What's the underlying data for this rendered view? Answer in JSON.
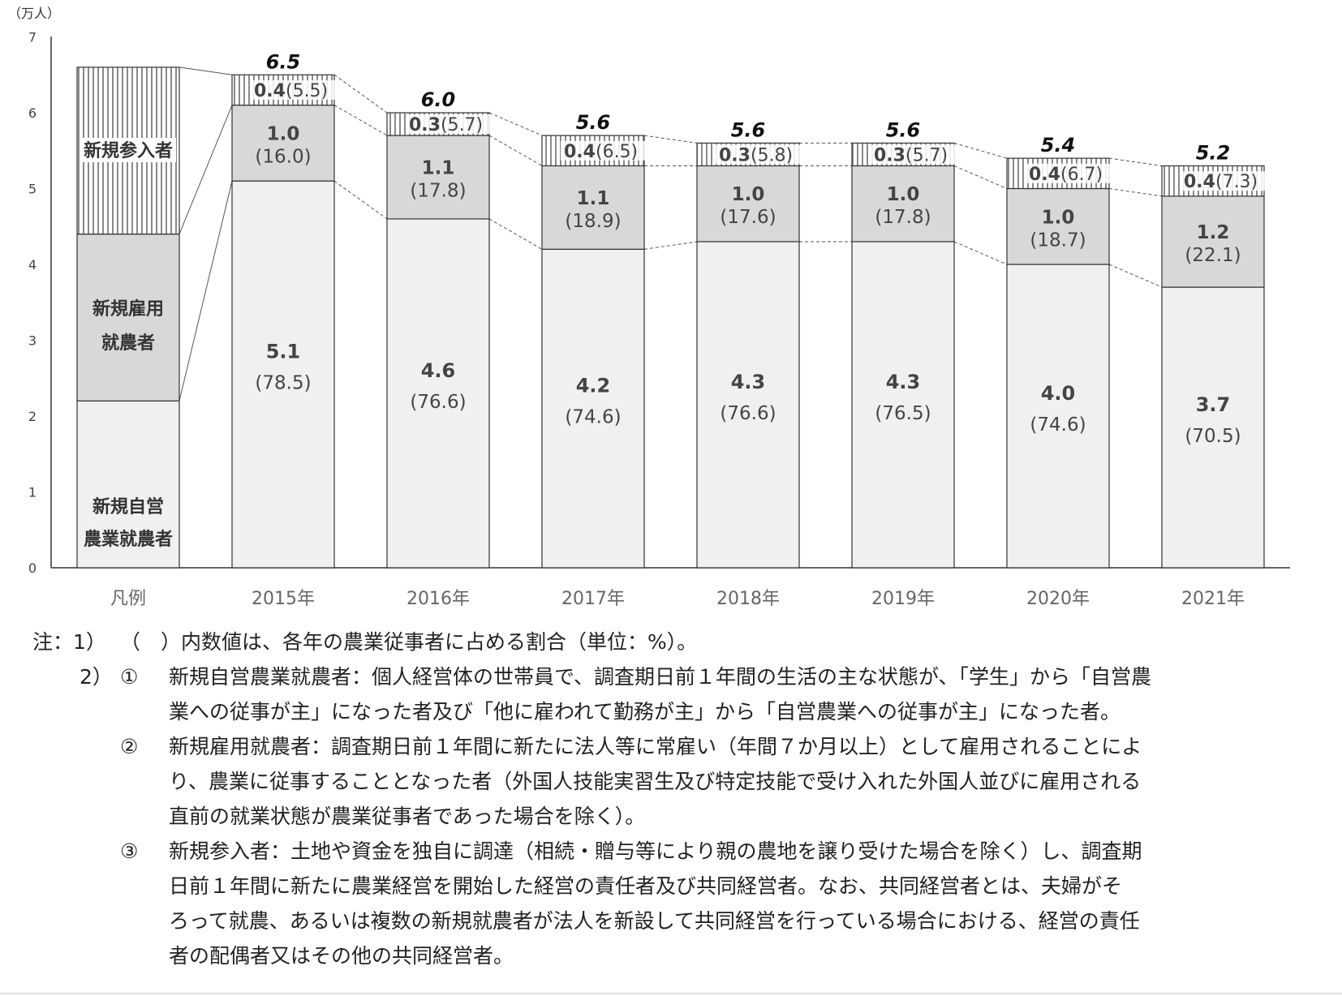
{
  "chart_data": {
    "type": "stacked-bar",
    "unit_label": "（万人）",
    "ylim": [
      0,
      7
    ],
    "y_ticks": [
      "0",
      "1",
      "2",
      "3",
      "4",
      "5",
      "6",
      "7"
    ],
    "legend_category": "凡例",
    "legend_segments": [
      {
        "label_lines": [
          "新規自営",
          "農業就農者"
        ]
      },
      {
        "label_lines": [
          "新規雇用",
          "就農者"
        ]
      },
      {
        "label_lines": [
          "新規参入者"
        ]
      }
    ],
    "categories": [
      "2015年",
      "2016年",
      "2017年",
      "2018年",
      "2019年",
      "2020年",
      "2021年"
    ],
    "totals": [
      "6.5",
      "6.0",
      "5.6",
      "5.6",
      "5.6",
      "5.4",
      "5.2"
    ],
    "series": [
      {
        "name": "新規自営農業就農者",
        "values": [
          5.1,
          4.6,
          4.2,
          4.3,
          4.3,
          4.0,
          3.7
        ],
        "labels": [
          "5.1",
          "4.6",
          "4.2",
          "4.3",
          "4.3",
          "4.0",
          "3.7"
        ],
        "pct": [
          "(78.5)",
          "(76.6)",
          "(74.6)",
          "(76.6)",
          "(76.5)",
          "(74.6)",
          "(70.5)"
        ],
        "color": "#f0f0f0"
      },
      {
        "name": "新規雇用就農者",
        "values": [
          1.0,
          1.1,
          1.1,
          1.0,
          1.0,
          1.0,
          1.2
        ],
        "labels": [
          "1.0",
          "1.1",
          "1.1",
          "1.0",
          "1.0",
          "1.0",
          "1.2"
        ],
        "pct": [
          "(16.0)",
          "(17.8)",
          "(18.9)",
          "(17.6)",
          "(17.8)",
          "(18.7)",
          "(22.1)"
        ],
        "color": "#d8d8d8"
      },
      {
        "name": "新規参入者",
        "values": [
          0.4,
          0.3,
          0.4,
          0.3,
          0.3,
          0.4,
          0.4
        ],
        "labels": [
          "0.4",
          "0.3",
          "0.4",
          "0.3",
          "0.3",
          "0.4",
          "0.4"
        ],
        "pct": [
          "(5.5)",
          "(5.7)",
          "(6.5)",
          "(5.8)",
          "(5.7)",
          "(6.7)",
          "(7.3)"
        ],
        "pattern": "vertical-stripes"
      }
    ],
    "notes": [
      {
        "prefix": "注：1）",
        "marker": "",
        "text": "（　）内数値は、各年の農業従事者に占める割合（単位：%）。"
      },
      {
        "prefix": "2）",
        "marker": "①",
        "text": "新規自営農業就農者：個人経営体の世帯員で、調査期日前１年間の生活の主な状態が、「学生」から「自営農"
      },
      {
        "prefix": "",
        "marker": "",
        "text": "業への従事が主」になった者及び「他に雇われて勤務が主」から「自営農業への従事が主」になった者。"
      },
      {
        "prefix": "",
        "marker": "②",
        "text": "新規雇用就農者：調査期日前１年間に新たに法人等に常雇い（年間７か月以上）として雇用されることによ"
      },
      {
        "prefix": "",
        "marker": "",
        "text": "り、農業に従事することとなった者（外国人技能実習生及び特定技能で受け入れた外国人並びに雇用される"
      },
      {
        "prefix": "",
        "marker": "",
        "text": "直前の就業状態が農業従事者であった場合を除く）。"
      },
      {
        "prefix": "",
        "marker": "③",
        "text": "新規参入者：土地や資金を独自に調達（相続・贈与等により親の農地を譲り受けた場合を除く）し、調査期"
      },
      {
        "prefix": "",
        "marker": "",
        "text": "日前１年間に新たに農業経営を開始した経営の責任者及び共同経営者。なお、共同経営者とは、夫婦がそ"
      },
      {
        "prefix": "",
        "marker": "",
        "text": "ろって就農、あるいは複数の新規就農者が法人を新設して共同経営を行っている場合における、経営の責任"
      },
      {
        "prefix": "",
        "marker": "",
        "text": "者の配偶者又はその他の共同経営者。"
      }
    ]
  }
}
